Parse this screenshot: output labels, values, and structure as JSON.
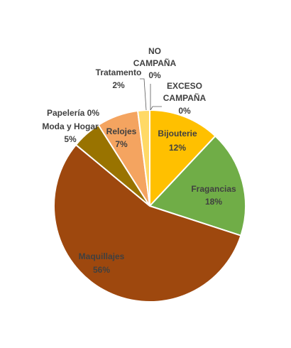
{
  "chart_data": {
    "type": "pie",
    "title": "",
    "slices": [
      {
        "name": "Bijouterie",
        "value": 12,
        "label": "12%",
        "color": "#FFC000"
      },
      {
        "name": "Fragancias",
        "value": 18,
        "label": "18%",
        "color": "#70AD47"
      },
      {
        "name": "Maquillajes",
        "value": 56,
        "label": "56%",
        "color": "#9E480E"
      },
      {
        "name": "Moda y Hogar",
        "value": 5,
        "label": "5%",
        "color": "#997300"
      },
      {
        "name": "Papelería",
        "value": 0,
        "label": "0%",
        "color": "#636363"
      },
      {
        "name": "Relojes",
        "value": 7,
        "label": "7%",
        "color": "#F4A460"
      },
      {
        "name": "Tratamento",
        "value": 2,
        "label": "2%",
        "color": "#FFD966"
      },
      {
        "name": "NO CAMPAÑA",
        "value": 0,
        "label": "0%",
        "color": "#5B9BD5"
      },
      {
        "name": "EXCESO CAMPAÑA",
        "value": 0,
        "label": "0%",
        "color": "#4472C4"
      }
    ]
  }
}
